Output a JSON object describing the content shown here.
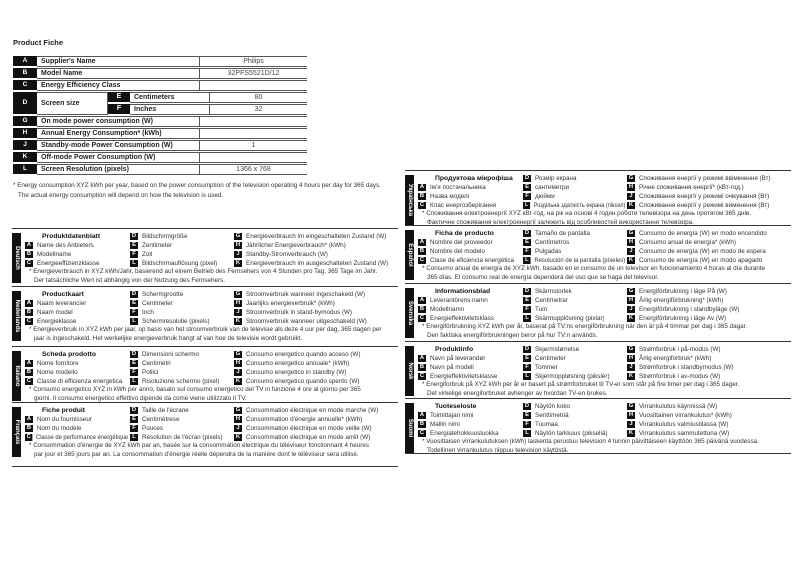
{
  "product_fiche": {
    "title": "Product Fiche",
    "rows": [
      {
        "letter": "A",
        "label": "Supplier's Name",
        "value": "Philips"
      },
      {
        "letter": "B",
        "label": "Model Name",
        "value": "32PFS5521D/12"
      },
      {
        "letter": "C",
        "label": "Energy Efficiency Class",
        "value": ""
      },
      {
        "letter": "D",
        "label": "Screen size",
        "sub": [
          {
            "letter": "E",
            "label": "Centimeters",
            "value": "80"
          },
          {
            "letter": "F",
            "label": "Inches",
            "value": "32"
          }
        ]
      },
      {
        "letter": "G",
        "label": "On mode power consumption (W)",
        "value": ""
      },
      {
        "letter": "H",
        "label": "Annual Energy Consumption* (kWh)",
        "value": ""
      },
      {
        "letter": "J",
        "label": "Standby-mode Power Consumption (W)",
        "value": "1"
      },
      {
        "letter": "K",
        "label": "Off-mode Power Consumption (W)",
        "value": ""
      },
      {
        "letter": "L",
        "label": "Screen Resolution (pixels)",
        "value": "1366 x 768"
      }
    ],
    "footnote1": "* Energy consumption XYZ kWh per year, based on the power consumption of the television operating 4 hours per day for 365 days.",
    "footnote2": "The actual energy consumption will depend on how the television is used."
  },
  "languages": [
    {
      "lang": "Deutsch",
      "title": "Produktdatenblatt",
      "A": "Name des Anbieters",
      "B": "Modellname",
      "C": "Energieeffizienzklasse",
      "D": "Bildschirmgröße",
      "E": "Zentimeter",
      "F": "Zoll",
      "L": "Bildschirmauflösung (pixel)",
      "G": "Energieverbrauch im eingeschalteten Zustand (W)",
      "H": "Jährlicher Energieverbrauch* (kWh)",
      "J": "Standby-Stromverbrauch (W)",
      "K": "Energieverbrauch im ausgeschalteten Zustand (W)",
      "note1": "* Energieverbrauch in XYZ kWh/Jahr, basierend auf einem Betrieb des Fernsehers von 4 Stunden pro Tag, 365 Tage im Jahr.",
      "note2": "Der tatsächliche Wert ist abhängig von der Nutzung des Fernsehers."
    },
    {
      "lang": "Nederlands",
      "title": "Productkaart",
      "A": "Naam leverancier",
      "B": "Naam model",
      "C": "Energieklasse",
      "D": "Schermgrootte",
      "E": "Centimeter",
      "F": "Inch",
      "L": "Schermresolutie (pixels)",
      "G": "Stroomverbruik wanneer ingeschakeld (W)",
      "H": "Jaarlijks energieverbruik* (kWh)",
      "J": "Stroomverbruik in stand-bymodus (W)",
      "K": "Stroomverbruik wanneer uitgeschakeld (W)",
      "note1": "* Energieverbruik in XYZ kWh per jaar, op basis van het stroomverbruik van de televisie als deze 4 uur per dag, 365 dagen per",
      "note2": "jaar is ingeschakeld. Het werkelijke energieverbruik hangt af van hoe de televisie wordt gebruikt."
    },
    {
      "lang": "Italiano",
      "title": "Scheda prodotto",
      "A": "Nome fornitore",
      "B": "Nome modello",
      "C": "Classe di efficienza energetica",
      "D": "Dimensioni schermo",
      "E": "Centimetri",
      "F": "Pollici",
      "L": "Risoluzione schermo (pixel)",
      "G": "Consumo energetico quando acceso (W)",
      "H": "Consumo energetico annuale* (kWh)",
      "J": "Consumo energetico in standby (W)",
      "K": "Consumo energetico quando spento (W)",
      "note1": "* Consumo energetico XYZ in kWh per anno, basato sul consumo energetico del TV in funzione 4 ore al giorno per 365",
      "note2": "giorni. Il consumo energetico effettivo dipende da come viene utilizzato il TV."
    },
    {
      "lang": "Français",
      "title": "Fiche produit",
      "A": "Nom du fournisseur",
      "B": "Nom du modèle",
      "C": "Classe de performance énergétique",
      "D": "Taille de l'écrane",
      "E": "Centimètrese",
      "F": "Pouces",
      "L": "Résolution de l'écran (pixels)",
      "G": "Consommation électrique en mode marche (W)",
      "H": "Consommation d'énergie annuelle* (kWh)",
      "J": "Consommation électrique en mode veille (W)",
      "K": "Consommation électrique en mode arrêt (W)",
      "note1": "* Consommation d'énergie de XYZ kWh par an, basée sur la consommation électrique du téléviseur fonctionnant 4 heures",
      "note2": "par jour et 365 jours par an. La consommation d'énergie réelle dépendra de la manière dont le téléviseur sera utilisé."
    },
    {
      "lang": "Українська",
      "title": "Продуктова мікрофіша",
      "A": "Ім'я постачальника",
      "B": "Назва моделі",
      "C": "Клас енергозберігання",
      "D": "Розмір екрана",
      "E": "сантиметри",
      "F": "дюйми",
      "L": "Роздільна здатність екрана (піксел)",
      "G": "Споживання енергії у режимі ввімкнення (Вт)",
      "H": "Річне споживання енергії* (кВт-год.)",
      "J": "Споживання енергії у режимі очікування (Вт)",
      "K": "Споживання енергії у режимі вимкнення (Вт)",
      "note1": "* Споживання електроенергії XYZ кВт-год. на рік на основі 4 годин роботи телевізора на день протягом 365 днів.",
      "note2": "Фактичне споживання електроенергії залежить від особливостей використання телевізора."
    },
    {
      "lang": "Español",
      "title": "Ficha de producto",
      "A": "Nombre del proveedor",
      "B": "Nombre del modelo",
      "C": "Clase de eficiencia energética",
      "D": "Tamaño de pantalla",
      "E": "Centímetros",
      "F": "Pulgadas",
      "L": "Resolución de la pantalla (píxeles)",
      "G": "Consumo de energía (W) en modo encendido",
      "H": "Consumo anual de energía* (kWh)",
      "J": "Consumo de energía (W) en modo de espera",
      "K": "Consumo de energía (W) en modo apagado",
      "note1": "* Consumo anual de energía de XYZ kWh, basado en el consumo de un televisor en funcionamiento 4 horas al día durante",
      "note2": "365 días. El consumo real de energía dependerá del uso que se haga del televisor."
    },
    {
      "lang": "Svenska",
      "title": "Informationsblad",
      "A": "Leverantörens namn",
      "B": "Modellnamn",
      "C": "Energieffektivitetsklass",
      "D": "Skärmstorlek",
      "E": "Centimetrar",
      "F": "Tum",
      "L": "Skärmupplösning (pixlar)",
      "G": "Energiförbrukning i läge På (W)",
      "H": "Årlig energiförbrukning* (kWh)",
      "J": "Energiförbrukning i standbyläge (W)",
      "K": "Energiförbrukning i läge Av (W)",
      "note1": "* Energiförbrukning XYZ kWh per år, baserat på TV:ns energiförbrukning när den är på 4 timmar per dag i 365 dagar.",
      "note2": "Den faktiska energiförbrukningen beror på hur TV:n används."
    },
    {
      "lang": "Norsk",
      "title": "Produktinfo",
      "A": "Navn på leverandør",
      "B": "Navn på modell",
      "C": "Energieffektivitetsklasse",
      "D": "Skjermstørrelse",
      "E": "Centimeter",
      "F": "Tommer",
      "L": "Skjermoppløsning (piksler)",
      "G": "Strømforbruk i på-modus (W)",
      "H": "Årlig energiforbruk* (kWh)",
      "J": "Strømforbruk i standbymodus (W)",
      "K": "Strømforbruk i av-modus (W)",
      "note1": "* Energiforbruk på XYZ kWh per år er basert på strømforbruket til TV-er som står på fire timer per dag i 365 dager.",
      "note2": "Det virkelige energiforbruket avhenger av hvordan TV-en brukes."
    },
    {
      "lang": "Suomi",
      "title": "Tuoteseloste",
      "A": "Toimittajan nimi",
      "B": "Mallin nimi",
      "C": "Energiatehokkuusluokka",
      "D": "Näytön koko",
      "E": "Senttimetriä",
      "F": "Tuumaa",
      "L": "Näytön tarkkuus (pikseliä)",
      "G": "Virrankulutus käynnissä (W)",
      "H": "Vuosittainen virrankulutus* (kWh)",
      "J": "Virrankulutus valmiustilassa (W)",
      "K": "Virrankulutus sammutettuna (W)",
      "note1": "* Vuosittaisen virrankulutuksen (kWh) laskenta perustuu television 4 tunnin päivittäiseen käyttöön 365 päivänä vuodessa.",
      "note2": "Todellinen virrankulutus riippuu television käytöstä."
    }
  ]
}
